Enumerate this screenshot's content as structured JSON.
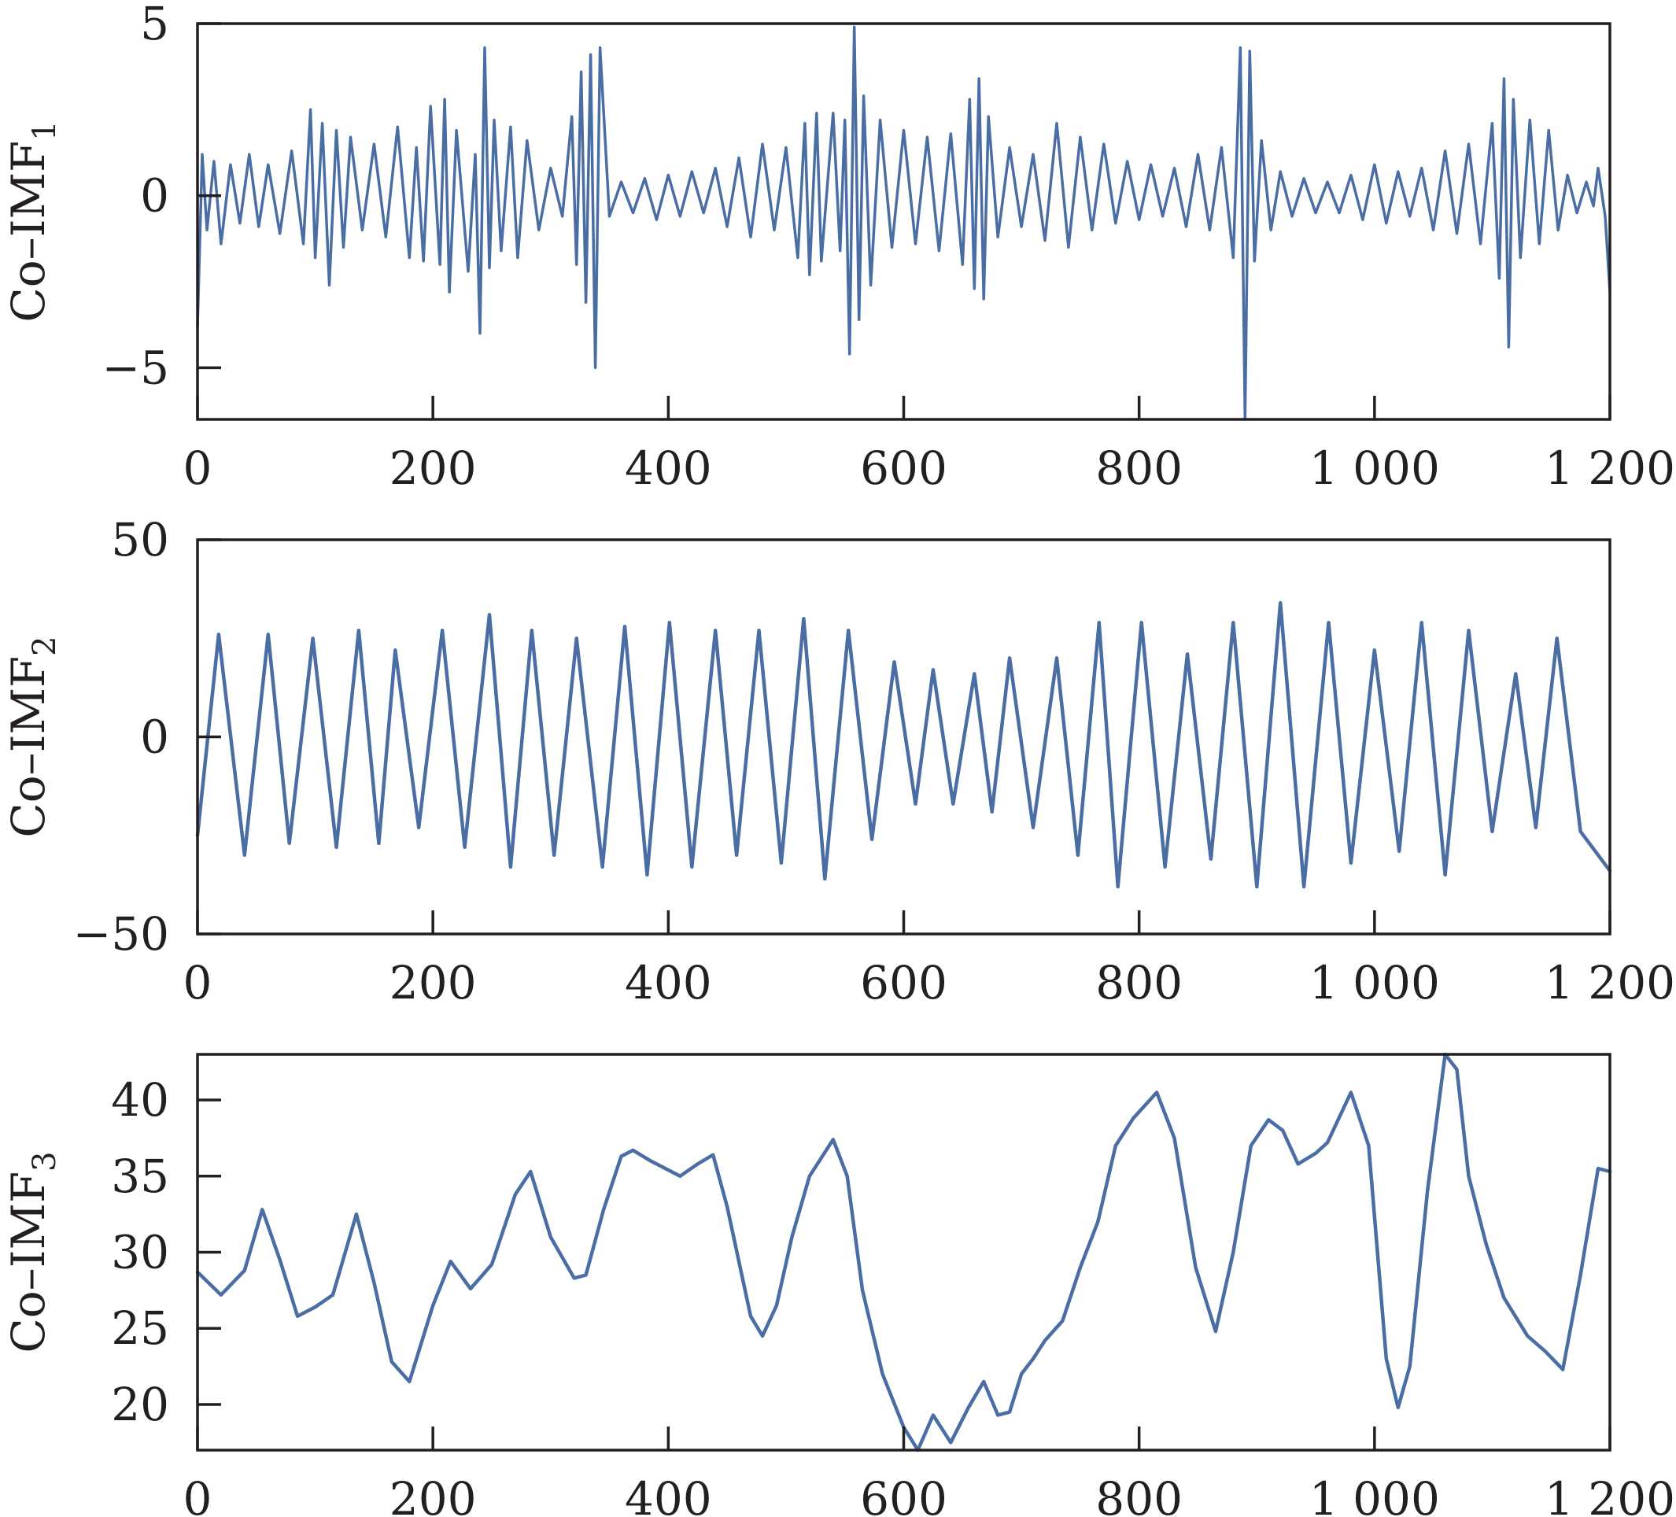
{
  "colors": {
    "series": "#4a6ea4",
    "axis": "#231f20"
  },
  "chart_data": [
    {
      "type": "line",
      "ylabel_main": "Co–IMF",
      "ylabel_sub": "1",
      "xlim": [
        0,
        1200
      ],
      "ylim": [
        -6.5,
        5
      ],
      "xticks": [
        0,
        200,
        400,
        600,
        800,
        1000,
        1200
      ],
      "xtick_labels": [
        "0",
        "200",
        "400",
        "600",
        "800",
        "1 000",
        "1 200"
      ],
      "yticks": [
        -5,
        0,
        5
      ],
      "ytick_labels": [
        "−5",
        "0",
        "5"
      ],
      "grid": false,
      "series": [
        {
          "x": [
            0,
            4,
            8,
            14,
            20,
            28,
            36,
            44,
            52,
            60,
            70,
            80,
            90,
            96,
            100,
            106,
            112,
            118,
            124,
            130,
            140,
            150,
            160,
            170,
            180,
            186,
            192,
            198,
            206,
            210,
            214,
            220,
            230,
            236,
            240,
            244,
            248,
            252,
            258,
            266,
            272,
            280,
            290,
            300,
            310,
            318,
            322,
            326,
            330,
            334,
            338,
            342,
            350,
            360,
            370,
            380,
            390,
            400,
            410,
            420,
            430,
            440,
            450,
            460,
            470,
            480,
            490,
            500,
            510,
            516,
            520,
            526,
            530,
            540,
            546,
            550,
            554,
            558,
            562,
            566,
            572,
            580,
            590,
            600,
            610,
            620,
            630,
            640,
            650,
            656,
            660,
            664,
            668,
            672,
            680,
            690,
            700,
            710,
            720,
            730,
            740,
            750,
            760,
            770,
            780,
            790,
            800,
            810,
            820,
            830,
            840,
            850,
            860,
            870,
            880,
            886,
            890,
            894,
            898,
            904,
            912,
            920,
            930,
            940,
            950,
            960,
            970,
            980,
            990,
            1000,
            1010,
            1020,
            1030,
            1040,
            1050,
            1060,
            1070,
            1080,
            1090,
            1100,
            1106,
            1110,
            1114,
            1118,
            1124,
            1132,
            1140,
            1148,
            1156,
            1164,
            1172,
            1180,
            1186,
            1190,
            1196,
            1200
          ],
          "y": [
            -3.8,
            1.2,
            -1.0,
            1.0,
            -1.4,
            0.9,
            -0.8,
            1.2,
            -0.9,
            0.9,
            -1.1,
            1.3,
            -1.4,
            2.5,
            -1.8,
            2.1,
            -2.6,
            1.9,
            -1.5,
            1.7,
            -1.0,
            1.5,
            -1.2,
            2.0,
            -1.8,
            1.4,
            -1.9,
            2.6,
            -2.0,
            2.8,
            -2.8,
            1.9,
            -2.2,
            1.2,
            -4.0,
            4.3,
            -2.1,
            2.2,
            -1.6,
            2.0,
            -1.8,
            1.6,
            -1.0,
            0.8,
            -0.6,
            2.3,
            -2.0,
            3.6,
            -3.1,
            4.1,
            -5.0,
            4.3,
            -0.6,
            0.4,
            -0.5,
            0.5,
            -0.7,
            0.6,
            -0.6,
            0.7,
            -0.5,
            0.8,
            -0.9,
            1.1,
            -1.2,
            1.5,
            -1.0,
            1.4,
            -1.8,
            2.1,
            -2.3,
            2.4,
            -1.9,
            2.4,
            -1.6,
            2.2,
            -4.6,
            4.9,
            -3.6,
            2.9,
            -2.6,
            2.2,
            -1.5,
            1.9,
            -1.4,
            1.7,
            -1.6,
            1.8,
            -2.0,
            2.8,
            -2.7,
            3.4,
            -3.0,
            2.3,
            -1.2,
            1.4,
            -0.9,
            1.2,
            -1.3,
            2.1,
            -1.5,
            1.7,
            -1.0,
            1.5,
            -0.8,
            1.0,
            -0.7,
            0.9,
            -0.6,
            0.8,
            -0.9,
            1.2,
            -1.0,
            1.4,
            -1.8,
            4.3,
            -6.5,
            4.2,
            -1.9,
            1.6,
            -1.0,
            0.7,
            -0.6,
            0.5,
            -0.5,
            0.4,
            -0.5,
            0.6,
            -0.7,
            0.9,
            -0.8,
            0.7,
            -0.6,
            0.8,
            -1.0,
            1.3,
            -1.1,
            1.5,
            -1.4,
            2.1,
            -2.4,
            3.4,
            -4.4,
            2.8,
            -1.8,
            2.2,
            -1.4,
            1.9,
            -1.0,
            0.6,
            -0.5,
            0.4,
            -0.3,
            0.8,
            -0.6,
            -2.8
          ]
        }
      ]
    },
    {
      "type": "line",
      "ylabel_main": "Co–IMF",
      "ylabel_sub": "2",
      "xlim": [
        0,
        1200
      ],
      "ylim": [
        -50,
        50
      ],
      "xticks": [
        0,
        200,
        400,
        600,
        800,
        1000,
        1200
      ],
      "xtick_labels": [
        "0",
        "200",
        "400",
        "600",
        "800",
        "1 000",
        "1 200"
      ],
      "yticks": [
        -50,
        0,
        50
      ],
      "ytick_labels": [
        "−50",
        "0",
        "50"
      ],
      "grid": false,
      "series": [
        {
          "x": [
            0,
            18,
            40,
            60,
            78,
            98,
            118,
            137,
            154,
            168,
            188,
            208,
            227,
            248,
            266,
            284,
            303,
            322,
            344,
            363,
            382,
            401,
            420,
            440,
            458,
            477,
            496,
            515,
            533,
            553,
            573,
            592,
            610,
            625,
            642,
            660,
            675,
            690,
            710,
            730,
            748,
            766,
            782,
            802,
            822,
            841,
            861,
            880,
            900,
            920,
            940,
            961,
            980,
            1000,
            1021,
            1040,
            1060,
            1080,
            1100,
            1120,
            1137,
            1155,
            1175,
            1200
          ],
          "y": [
            -25,
            26,
            -30,
            26,
            -27,
            25,
            -28,
            27,
            -27,
            22,
            -23,
            27,
            -28,
            31,
            -33,
            27,
            -30,
            25,
            -33,
            28,
            -35,
            29,
            -33,
            27,
            -30,
            27,
            -32,
            30,
            -36,
            27,
            -26,
            19,
            -17,
            17,
            -17,
            16,
            -19,
            20,
            -23,
            20,
            -30,
            29,
            -38,
            29,
            -33,
            21,
            -31,
            29,
            -38,
            34,
            -38,
            29,
            -32,
            22,
            -29,
            29,
            -35,
            27,
            -24,
            16,
            -23,
            25,
            -24,
            -34
          ]
        }
      ]
    },
    {
      "type": "line",
      "ylabel_main": "Co–IMF",
      "ylabel_sub": "3",
      "xlim": [
        0,
        1200
      ],
      "ylim": [
        17,
        43
      ],
      "xticks": [
        0,
        200,
        400,
        600,
        800,
        1000,
        1200
      ],
      "xtick_labels": [
        "0",
        "200",
        "400",
        "600",
        "800",
        "1 000",
        "1 200"
      ],
      "yticks": [
        20,
        25,
        30,
        35,
        40
      ],
      "ytick_labels": [
        "20",
        "25",
        "30",
        "35",
        "40"
      ],
      "grid": false,
      "series": [
        {
          "x": [
            0,
            20,
            40,
            55,
            70,
            85,
            100,
            115,
            135,
            150,
            165,
            180,
            200,
            215,
            232,
            250,
            270,
            283,
            300,
            320,
            330,
            345,
            360,
            370,
            385,
            400,
            410,
            425,
            438,
            450,
            470,
            480,
            492,
            505,
            520,
            540,
            552,
            565,
            582,
            600,
            612,
            625,
            640,
            655,
            668,
            680,
            690,
            700,
            710,
            720,
            735,
            750,
            765,
            780,
            795,
            815,
            830,
            848,
            865,
            880,
            895,
            910,
            922,
            935,
            950,
            960,
            980,
            995,
            1010,
            1020,
            1030,
            1045,
            1060,
            1070,
            1080,
            1095,
            1110,
            1130,
            1145,
            1160,
            1175,
            1190,
            1200
          ],
          "y": [
            28.7,
            27.2,
            28.8,
            32.8,
            29.5,
            25.8,
            26.4,
            27.2,
            32.5,
            28.0,
            22.8,
            21.5,
            26.5,
            29.4,
            27.6,
            29.2,
            33.8,
            35.3,
            31.0,
            28.3,
            28.5,
            32.8,
            36.3,
            36.7,
            36.0,
            35.4,
            35.0,
            35.8,
            36.4,
            33.0,
            25.8,
            24.5,
            26.5,
            31.0,
            35.0,
            37.4,
            35.0,
            27.5,
            22.0,
            18.5,
            17.0,
            19.3,
            17.5,
            19.8,
            21.5,
            19.3,
            19.5,
            22.0,
            23.0,
            24.2,
            25.5,
            29.0,
            32.0,
            37.0,
            38.8,
            40.5,
            37.5,
            29.0,
            24.8,
            30.0,
            37.0,
            38.7,
            38.0,
            35.8,
            36.5,
            37.2,
            40.5,
            37.0,
            23.0,
            19.8,
            22.5,
            34.0,
            43.0,
            42.0,
            35.0,
            30.5,
            27.0,
            24.5,
            23.5,
            22.3,
            28.5,
            35.5,
            35.3
          ]
        }
      ]
    }
  ]
}
